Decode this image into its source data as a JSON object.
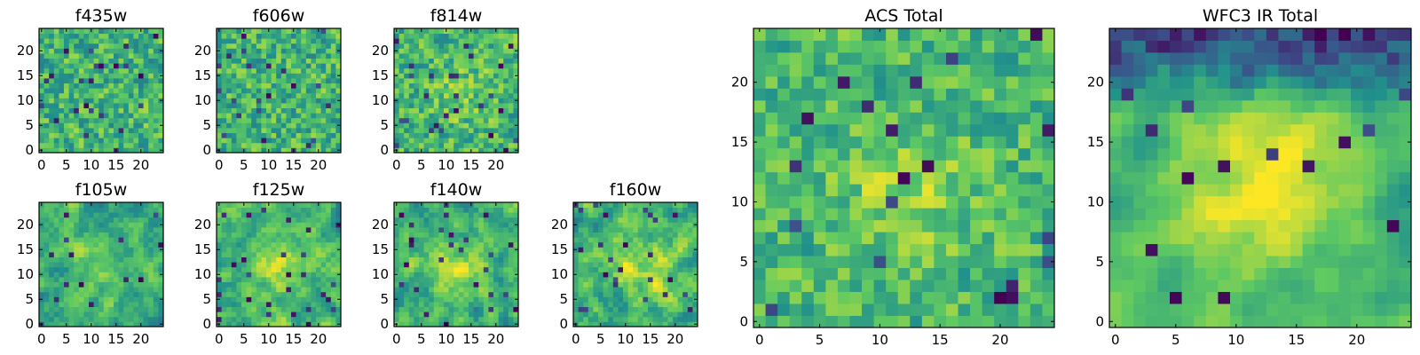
{
  "figure": {
    "background": "#ffffff",
    "colormap": "viridis",
    "colormap_stops": [
      "#440154",
      "#3b528b",
      "#21918c",
      "#5ec962",
      "#fde725"
    ]
  },
  "chart_data": [
    {
      "type": "heatmap",
      "title": "f435w",
      "grid_size": 25,
      "seed": 11,
      "smoothness": 0.15,
      "mean": 0.65,
      "spread": 0.18,
      "xticks": [
        "0",
        "5",
        "10",
        "15",
        "20"
      ],
      "yticks": [
        "0",
        "5",
        "10",
        "15",
        "20"
      ],
      "xlim": [
        0,
        25
      ],
      "ylim": [
        0,
        25
      ],
      "grid": false,
      "legend": false
    },
    {
      "type": "heatmap",
      "title": "f606w",
      "grid_size": 25,
      "seed": 23,
      "smoothness": 0.15,
      "mean": 0.65,
      "spread": 0.18,
      "xticks": [
        "0",
        "5",
        "10",
        "15",
        "20"
      ],
      "yticks": [
        "0",
        "5",
        "10",
        "15",
        "20"
      ],
      "xlim": [
        0,
        25
      ],
      "ylim": [
        0,
        25
      ],
      "grid": false,
      "legend": false
    },
    {
      "type": "heatmap",
      "title": "f814w",
      "grid_size": 25,
      "seed": 37,
      "smoothness": 0.2,
      "mean": 0.66,
      "spread": 0.18,
      "blob": 0.1,
      "xticks": [
        "0",
        "5",
        "10",
        "15",
        "20"
      ],
      "yticks": [
        "0",
        "5",
        "10",
        "15",
        "20"
      ],
      "xlim": [
        0,
        25
      ],
      "ylim": [
        0,
        25
      ],
      "grid": false,
      "legend": false
    },
    {
      "type": "heatmap",
      "title": "f105w",
      "grid_size": 25,
      "seed": 41,
      "smoothness": 0.55,
      "mean": 0.62,
      "spread": 0.2,
      "blob": 0.15,
      "xticks": [
        "0",
        "5",
        "10",
        "15",
        "20"
      ],
      "yticks": [
        "0",
        "5",
        "10",
        "15",
        "20"
      ],
      "xlim": [
        0,
        25
      ],
      "ylim": [
        0,
        25
      ],
      "grid": false,
      "legend": false
    },
    {
      "type": "heatmap",
      "title": "f125w",
      "grid_size": 25,
      "seed": 53,
      "smoothness": 0.55,
      "mean": 0.64,
      "spread": 0.2,
      "blob": 0.2,
      "xticks": [
        "0",
        "5",
        "10",
        "15",
        "20"
      ],
      "yticks": [
        "0",
        "5",
        "10",
        "15",
        "20"
      ],
      "xlim": [
        0,
        25
      ],
      "ylim": [
        0,
        25
      ],
      "grid": false,
      "legend": false
    },
    {
      "type": "heatmap",
      "title": "f140w",
      "grid_size": 25,
      "seed": 67,
      "smoothness": 0.55,
      "mean": 0.63,
      "spread": 0.2,
      "blob": 0.2,
      "xticks": [
        "0",
        "5",
        "10",
        "15",
        "20"
      ],
      "yticks": [
        "0",
        "5",
        "10",
        "15",
        "20"
      ],
      "xlim": [
        0,
        25
      ],
      "ylim": [
        0,
        25
      ],
      "grid": false,
      "legend": false
    },
    {
      "type": "heatmap",
      "title": "f160w",
      "grid_size": 25,
      "seed": 79,
      "smoothness": 0.55,
      "mean": 0.64,
      "spread": 0.2,
      "blob": 0.25,
      "xticks": [
        "0",
        "5",
        "10",
        "15",
        "20"
      ],
      "yticks": [
        "0",
        "5",
        "10",
        "15",
        "20"
      ],
      "xlim": [
        0,
        25
      ],
      "ylim": [
        0,
        25
      ],
      "grid": false,
      "legend": false
    },
    {
      "type": "heatmap",
      "title": "ACS Total",
      "grid_size": 25,
      "seed": 97,
      "smoothness": 0.3,
      "mean": 0.66,
      "spread": 0.16,
      "blob": 0.15,
      "xticks": [
        "0",
        "5",
        "10",
        "15",
        "20"
      ],
      "yticks": [
        "0",
        "5",
        "10",
        "15",
        "20"
      ],
      "xlim": [
        0,
        25
      ],
      "ylim": [
        0,
        25
      ],
      "grid": false,
      "legend": false
    },
    {
      "type": "heatmap",
      "title": "WFC3 IR Total",
      "grid_size": 25,
      "seed": 113,
      "smoothness": 0.7,
      "mean": 0.66,
      "spread": 0.13,
      "blob": 0.35,
      "top_dark": 0.55,
      "xticks": [
        "0",
        "5",
        "10",
        "15",
        "20"
      ],
      "yticks": [
        "0",
        "5",
        "10",
        "15",
        "20"
      ],
      "xlim": [
        0,
        25
      ],
      "ylim": [
        0,
        25
      ],
      "grid": false,
      "legend": false
    }
  ]
}
